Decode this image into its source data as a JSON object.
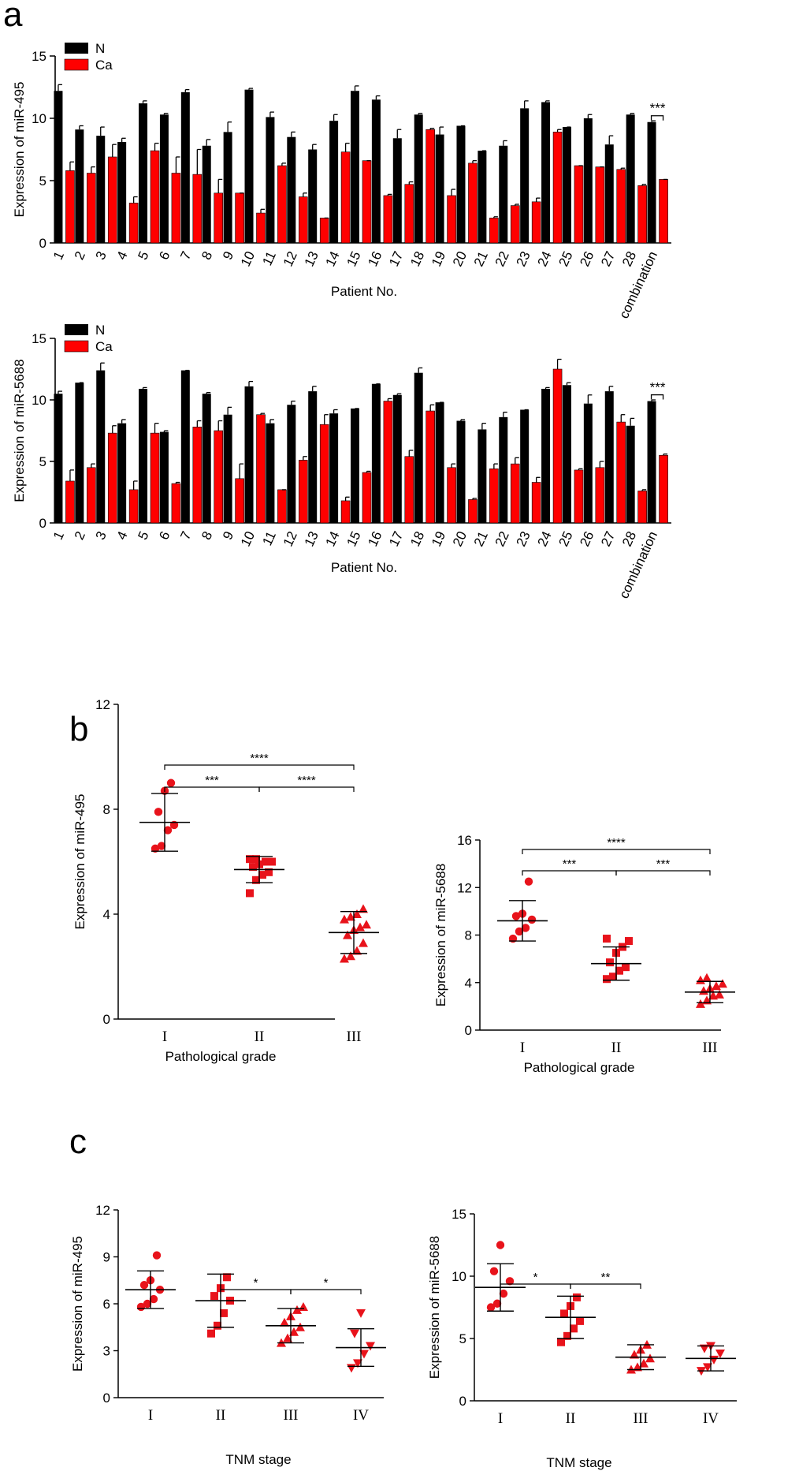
{
  "panels": {
    "a": "a",
    "b": "b",
    "c": "c"
  },
  "colors": {
    "N": "#000000",
    "Ca": "#ff0000",
    "scatter": "#e8131b"
  },
  "chart_data": [
    {
      "type": "bar",
      "id": "mir495_bar",
      "ylabel": "Expression of miR-495",
      "xlabel": "Patient No.",
      "ylim": [
        0,
        15
      ],
      "yticks": [
        0,
        5,
        10,
        15
      ],
      "categories": [
        "1",
        "2",
        "3",
        "4",
        "5",
        "6",
        "7",
        "8",
        "9",
        "10",
        "11",
        "12",
        "13",
        "14",
        "15",
        "16",
        "17",
        "18",
        "19",
        "20",
        "21",
        "22",
        "23",
        "24",
        "25",
        "26",
        "27",
        "28",
        "combination"
      ],
      "series": [
        {
          "name": "N",
          "values": [
            12.2,
            9.1,
            8.6,
            8.1,
            11.2,
            10.3,
            12.1,
            7.8,
            8.9,
            12.3,
            10.1,
            8.5,
            7.5,
            9.8,
            12.2,
            11.5,
            8.4,
            10.3,
            8.7,
            9.4,
            7.4,
            7.8,
            10.8,
            11.3,
            9.3,
            10.0,
            7.9,
            10.3,
            9.7
          ],
          "errors": [
            0.5,
            0.3,
            0.7,
            0.3,
            0.2,
            0.1,
            0.2,
            0.5,
            0.8,
            0.1,
            0.4,
            0.4,
            0.4,
            0.5,
            0.4,
            0.3,
            0.7,
            0.1,
            0.6,
            0.0,
            0.0,
            0.4,
            0.6,
            0.1,
            0.0,
            0.3,
            0.7,
            0.1,
            0.1
          ]
        },
        {
          "name": "Ca",
          "values": [
            5.8,
            5.6,
            6.9,
            3.2,
            7.4,
            5.6,
            5.5,
            4.0,
            4.0,
            2.4,
            6.2,
            3.7,
            2.0,
            7.3,
            6.6,
            3.8,
            4.7,
            9.1,
            3.8,
            6.4,
            2.0,
            3.0,
            3.3,
            8.9,
            6.2,
            6.1,
            5.9,
            4.6,
            5.1
          ],
          "errors": [
            0.7,
            0.5,
            1.0,
            0.5,
            0.6,
            1.3,
            2.0,
            1.1,
            0.0,
            0.3,
            0.2,
            0.3,
            0.0,
            0.7,
            0.0,
            0.1,
            0.2,
            0.1,
            0.5,
            0.2,
            0.1,
            0.1,
            0.3,
            0.2,
            0.0,
            0.0,
            0.1,
            0.1,
            0.0
          ]
        }
      ],
      "annotation": "***"
    },
    {
      "type": "bar",
      "id": "mir5688_bar",
      "ylabel": "Expression of miR-5688",
      "xlabel": "Patient No.",
      "ylim": [
        0,
        15
      ],
      "yticks": [
        0,
        5,
        10,
        15
      ],
      "categories": [
        "1",
        "2",
        "3",
        "4",
        "5",
        "6",
        "7",
        "8",
        "9",
        "10",
        "11",
        "12",
        "13",
        "14",
        "15",
        "16",
        "17",
        "18",
        "19",
        "20",
        "21",
        "22",
        "23",
        "24",
        "25",
        "26",
        "27",
        "28",
        "combination"
      ],
      "series": [
        {
          "name": "N",
          "values": [
            10.5,
            11.4,
            12.4,
            8.1,
            10.9,
            7.4,
            12.4,
            10.5,
            8.8,
            11.1,
            8.1,
            9.6,
            10.7,
            8.9,
            9.3,
            11.3,
            10.4,
            12.2,
            9.8,
            8.3,
            7.6,
            8.6,
            9.2,
            10.9,
            11.2,
            9.7,
            10.7,
            7.9,
            9.9
          ],
          "errors": [
            0.2,
            0.0,
            0.6,
            0.3,
            0.1,
            0.1,
            0.0,
            0.1,
            0.6,
            0.4,
            0.3,
            0.3,
            0.4,
            0.3,
            0.0,
            0.0,
            0.1,
            0.4,
            0.0,
            0.1,
            0.5,
            0.4,
            0.0,
            0.1,
            0.2,
            0.7,
            0.4,
            0.6,
            0.1
          ]
        },
        {
          "name": "Ca",
          "values": [
            3.4,
            4.5,
            7.3,
            2.7,
            7.3,
            3.2,
            7.8,
            7.5,
            3.6,
            8.8,
            2.7,
            5.1,
            8.0,
            1.8,
            4.1,
            9.9,
            5.4,
            9.1,
            4.5,
            1.9,
            4.4,
            4.8,
            3.3,
            12.5,
            4.3,
            4.5,
            8.2,
            2.6,
            5.5
          ],
          "errors": [
            0.9,
            0.3,
            0.6,
            0.7,
            0.8,
            0.1,
            0.5,
            0.8,
            1.2,
            0.1,
            0.0,
            0.3,
            0.8,
            0.3,
            0.1,
            0.2,
            0.5,
            0.5,
            0.3,
            0.1,
            0.4,
            0.5,
            0.4,
            0.8,
            0.1,
            0.5,
            0.6,
            0.1,
            0.1
          ]
        }
      ],
      "annotation": "***"
    },
    {
      "type": "scatter",
      "id": "mir495_grade",
      "ylabel": "Expression of miR-495",
      "xlabel": "Pathological grade",
      "ylim": [
        0,
        12
      ],
      "yticks": [
        0,
        4,
        8,
        12
      ],
      "categories": [
        "I",
        "II",
        "III"
      ],
      "markers": [
        "circle",
        "square",
        "triangle"
      ],
      "groups": [
        {
          "name": "I",
          "mean": 7.5,
          "sd": 1.1,
          "points": [
            6.5,
            6.6,
            7.2,
            7.4,
            7.9,
            8.7,
            9.0
          ]
        },
        {
          "name": "II",
          "mean": 5.7,
          "sd": 0.5,
          "points": [
            4.8,
            5.3,
            5.5,
            5.6,
            5.8,
            5.9,
            6.0,
            6.0,
            6.1,
            6.1
          ]
        },
        {
          "name": "III",
          "mean": 3.3,
          "sd": 0.8,
          "points": [
            2.3,
            2.4,
            2.6,
            2.9,
            3.2,
            3.4,
            3.5,
            3.6,
            3.8,
            3.9,
            4.0,
            4.2
          ]
        }
      ],
      "brackets": [
        {
          "from": 0,
          "to": 2,
          "label": "****",
          "level": 2
        },
        {
          "from": 0,
          "to": 1,
          "label": "***",
          "level": 1
        },
        {
          "from": 1,
          "to": 2,
          "label": "****",
          "level": 1
        }
      ]
    },
    {
      "type": "scatter",
      "id": "mir5688_grade",
      "ylabel": "Expression of miR-5688",
      "xlabel": "Pathological grade",
      "ylim": [
        0,
        16
      ],
      "yticks": [
        0,
        4,
        8,
        12,
        16
      ],
      "categories": [
        "I",
        "II",
        "III"
      ],
      "markers": [
        "circle",
        "square",
        "triangle"
      ],
      "groups": [
        {
          "name": "I",
          "mean": 9.2,
          "sd": 1.7,
          "points": [
            7.7,
            8.3,
            8.6,
            9.3,
            9.6,
            9.8,
            12.5
          ]
        },
        {
          "name": "II",
          "mean": 5.6,
          "sd": 1.4,
          "points": [
            4.3,
            4.5,
            5.0,
            5.3,
            5.7,
            6.5,
            7.0,
            7.5,
            7.7
          ]
        },
        {
          "name": "III",
          "mean": 3.2,
          "sd": 0.9,
          "points": [
            2.2,
            2.5,
            2.9,
            3.0,
            3.3,
            3.5,
            3.7,
            3.9,
            4.2,
            4.4
          ]
        }
      ],
      "brackets": [
        {
          "from": 0,
          "to": 2,
          "label": "****",
          "level": 2
        },
        {
          "from": 0,
          "to": 1,
          "label": "***",
          "level": 1
        },
        {
          "from": 1,
          "to": 2,
          "label": "***",
          "level": 1
        }
      ]
    },
    {
      "type": "scatter",
      "id": "mir495_tnm",
      "ylabel": "Expression of miR-495",
      "xlabel": "TNM stage",
      "ylim": [
        0,
        12
      ],
      "yticks": [
        0,
        3,
        6,
        9,
        12
      ],
      "categories": [
        "I",
        "II",
        "III",
        "IV"
      ],
      "markers": [
        "circle",
        "square",
        "triangle",
        "triangle-down"
      ],
      "groups": [
        {
          "name": "I",
          "mean": 6.9,
          "sd": 1.2,
          "points": [
            5.8,
            6.0,
            6.3,
            6.9,
            7.2,
            7.5,
            9.1
          ]
        },
        {
          "name": "II",
          "mean": 6.2,
          "sd": 1.7,
          "points": [
            4.1,
            4.6,
            5.4,
            6.2,
            6.5,
            7.0,
            7.7
          ]
        },
        {
          "name": "III",
          "mean": 4.6,
          "sd": 1.1,
          "points": [
            3.5,
            3.8,
            4.2,
            4.5,
            4.8,
            5.2,
            5.6,
            5.8
          ]
        },
        {
          "name": "IV",
          "mean": 3.2,
          "sd": 1.2,
          "points": [
            1.9,
            2.2,
            2.8,
            3.3,
            4.1,
            5.4
          ]
        }
      ],
      "brackets": [
        {
          "from": 1,
          "to": 2,
          "label": "*",
          "level": 1
        },
        {
          "from": 2,
          "to": 3,
          "label": "*",
          "level": 1
        }
      ]
    },
    {
      "type": "scatter",
      "id": "mir5688_tnm",
      "ylabel": "Expression of miR-5688",
      "xlabel": "TNM stage",
      "ylim": [
        0,
        15
      ],
      "yticks": [
        0,
        5,
        10,
        15
      ],
      "categories": [
        "I",
        "II",
        "III",
        "IV"
      ],
      "markers": [
        "circle",
        "square",
        "triangle",
        "triangle-down"
      ],
      "groups": [
        {
          "name": "I",
          "mean": 9.1,
          "sd": 1.9,
          "points": [
            7.5,
            7.8,
            8.6,
            9.6,
            10.4,
            12.5
          ]
        },
        {
          "name": "II",
          "mean": 6.7,
          "sd": 1.7,
          "points": [
            4.7,
            5.2,
            5.8,
            6.4,
            7.0,
            7.6,
            8.3
          ]
        },
        {
          "name": "III",
          "mean": 3.5,
          "sd": 1.0,
          "points": [
            2.5,
            2.7,
            3.0,
            3.4,
            3.7,
            4.1,
            4.5
          ]
        },
        {
          "name": "IV",
          "mean": 3.4,
          "sd": 1.0,
          "points": [
            2.4,
            2.7,
            3.3,
            3.8,
            4.2,
            4.4
          ]
        }
      ],
      "brackets": [
        {
          "from": 0,
          "to": 1,
          "label": "*",
          "level": 1
        },
        {
          "from": 1,
          "to": 2,
          "label": "**",
          "level": 1
        }
      ]
    }
  ]
}
